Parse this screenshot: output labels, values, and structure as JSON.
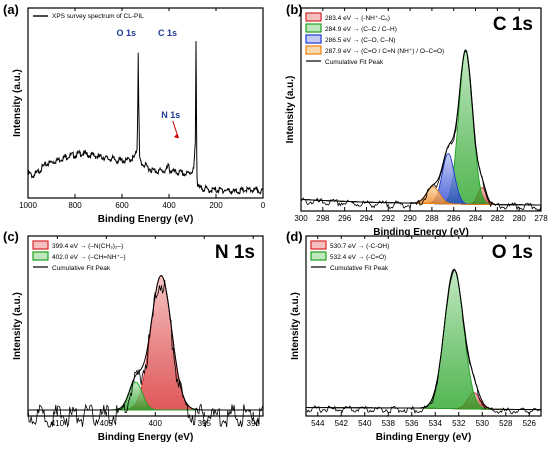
{
  "colors": {
    "red": "#d62728",
    "red_light": "#f4c0c0",
    "green": "#1fa01f",
    "green_light": "#bfe8bf",
    "blue": "#1f3ad0",
    "blue_light": "#c4ccf5",
    "orange": "#f07f0a",
    "orange_light": "#fbd9b0",
    "black": "#000000",
    "annotation_blue": "#1f3a93"
  },
  "chart_data": [
    {
      "id": "a",
      "type": "line",
      "panel_label": "(a)",
      "xlabel": "Binding Energy (eV)",
      "ylabel": "Intensity (a.u.)",
      "xlim": [
        1000,
        0
      ],
      "xticks": [
        1000,
        800,
        600,
        400,
        200,
        0
      ],
      "legend": [
        "XPS survey spectrum of CL-PIL"
      ],
      "legend_position": "top-left",
      "annotations": [
        "O 1s",
        "C 1s",
        "N 1s"
      ],
      "ylim": [
        0,
        100
      ],
      "series": [
        {
          "name": "XPS survey spectrum of CL-PIL",
          "x": [
            1000,
            980,
            960,
            940,
            920,
            900,
            880,
            860,
            840,
            820,
            800,
            780,
            760,
            740,
            720,
            700,
            680,
            660,
            640,
            620,
            600,
            580,
            560,
            545,
            536,
            533,
            531,
            529,
            525,
            515,
            500,
            480,
            460,
            440,
            420,
            410,
            402,
            399,
            396,
            390,
            370,
            350,
            330,
            310,
            295,
            288,
            285,
            283,
            281,
            278,
            270,
            250,
            230,
            200,
            160,
            120,
            80,
            40,
            0
          ],
          "y": [
            12,
            10,
            12,
            15,
            17,
            18,
            19,
            20,
            21,
            22,
            22,
            23,
            23,
            22,
            22,
            21,
            21,
            20,
            20,
            19,
            19,
            19,
            20,
            21,
            26,
            48,
            82,
            52,
            20,
            17,
            16,
            14,
            13,
            13,
            13,
            14,
            16,
            15,
            13,
            13,
            12,
            12,
            11,
            12,
            14,
            28,
            88,
            45,
            10,
            4,
            3,
            3,
            2,
            2,
            2,
            1,
            2,
            2,
            1
          ]
        }
      ]
    },
    {
      "id": "b",
      "type": "area",
      "panel_label": "(b)",
      "title": "C 1s",
      "xlabel": "Binding Energy (eV)",
      "ylabel": "Intensity (a.u.)",
      "xlim": [
        300,
        278
      ],
      "xticks": [
        300,
        298,
        296,
        294,
        292,
        290,
        288,
        286,
        284,
        282,
        280,
        278
      ],
      "ylim": [
        0,
        100
      ],
      "legend_position": "top-left",
      "peaks": [
        {
          "name": "283.4 eV → (-NH⁺-C₆)",
          "center": 283.4,
          "height": 9,
          "fwhm": 0.9,
          "color": "red"
        },
        {
          "name": "284.9 eV → (C–C / C–H)",
          "center": 284.9,
          "height": 82,
          "fwhm": 1.5,
          "color": "green"
        },
        {
          "name": "286.5 eV → (C–O, C–N)",
          "center": 286.5,
          "height": 27,
          "fwhm": 1.3,
          "color": "blue"
        },
        {
          "name": "287.9 eV → (C=O / C=N (NH⁺) / O–C=O)",
          "center": 287.9,
          "height": 9,
          "fwhm": 1.4,
          "color": "orange"
        }
      ],
      "baseline": [
        [
          300,
          3
        ],
        [
          298,
          2.4
        ],
        [
          294,
          1.5
        ],
        [
          290,
          1.0
        ],
        [
          286,
          0.5
        ],
        [
          282,
          0.2
        ],
        [
          278,
          0
        ]
      ],
      "fit_name": "Cumulative Fit Peak"
    },
    {
      "id": "c",
      "type": "area",
      "panel_label": "(c)",
      "title": "N 1s",
      "xlabel": "Binding Energy (eV)",
      "ylabel": "Intensity (a.u.)",
      "xlim": [
        413,
        389
      ],
      "xticks": [
        410,
        405,
        400,
        395,
        390
      ],
      "ylim": [
        0,
        100
      ],
      "legend_position": "top-left",
      "peaks": [
        {
          "name": "399.4 eV → (–N(CH₃)₂–)",
          "center": 399.4,
          "height": 82,
          "fwhm": 2.5,
          "color": "red"
        },
        {
          "name": "402.0 eV → (–CH=NH⁺–)",
          "center": 402.0,
          "height": 17,
          "fwhm": 1.6,
          "color": "green"
        }
      ],
      "baseline": [
        [
          413,
          0
        ],
        [
          389,
          0
        ]
      ],
      "fit_name": "Cumulative Fit Peak"
    },
    {
      "id": "d",
      "type": "area",
      "panel_label": "(d)",
      "title": "O 1s",
      "xlabel": "Binding Energy (eV)",
      "ylabel": "Intensity (a.u.)",
      "xlim": [
        545,
        525
      ],
      "xticks": [
        544,
        542,
        540,
        538,
        536,
        534,
        532,
        530,
        528,
        526
      ],
      "ylim": [
        0,
        100
      ],
      "legend_position": "top-left",
      "peaks": [
        {
          "name": "530.7 eV → (-C-OH)",
          "center": 530.7,
          "height": 10,
          "fwhm": 1.2,
          "color": "red"
        },
        {
          "name": "532.4 eV → (-C=O)",
          "center": 532.4,
          "height": 85,
          "fwhm": 1.9,
          "color": "green"
        }
      ],
      "baseline": [
        [
          545,
          1.5
        ],
        [
          536,
          1.2
        ],
        [
          534,
          1.0
        ],
        [
          530,
          0.5
        ],
        [
          525,
          0.2
        ]
      ],
      "fit_name": "Cumulative Fit Peak"
    }
  ]
}
